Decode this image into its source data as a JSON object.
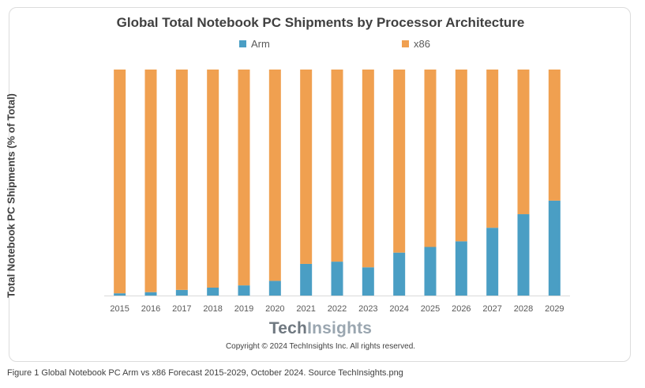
{
  "caption": "Figure 1 Global Notebook PC Arm vs x86 Forecast 2015-2029, October 2024. Source TechInsights.png",
  "brand": {
    "part1": "Tech",
    "part2": "Insights"
  },
  "copyright": "Copyright © 2024 TechInsights Inc.  All rights reserved.",
  "chart_data": {
    "type": "bar",
    "stacked": true,
    "title": "Global Total Notebook PC Shipments by Processor Architecture",
    "xlabel": "",
    "ylabel": "Total Notebook PC Shipments (% of Total)",
    "ylim": [
      0,
      100
    ],
    "grid": false,
    "legend_position": "top-center",
    "categories": [
      "2015",
      "2016",
      "2017",
      "2018",
      "2019",
      "2020",
      "2021",
      "2022",
      "2023",
      "2024",
      "2025",
      "2026",
      "2027",
      "2028",
      "2029"
    ],
    "series": [
      {
        "name": "Arm",
        "color": "#4a9ec4",
        "values": [
          1,
          1.5,
          2.5,
          3.5,
          4.5,
          6.5,
          14,
          15,
          12.5,
          19,
          21.5,
          24,
          30,
          36,
          42
        ]
      },
      {
        "name": "x86",
        "color": "#f0a050",
        "values": [
          99,
          98.5,
          97.5,
          96.5,
          95.5,
          93.5,
          86,
          85,
          87.5,
          81,
          78.5,
          76,
          70,
          64,
          58
        ]
      }
    ]
  }
}
